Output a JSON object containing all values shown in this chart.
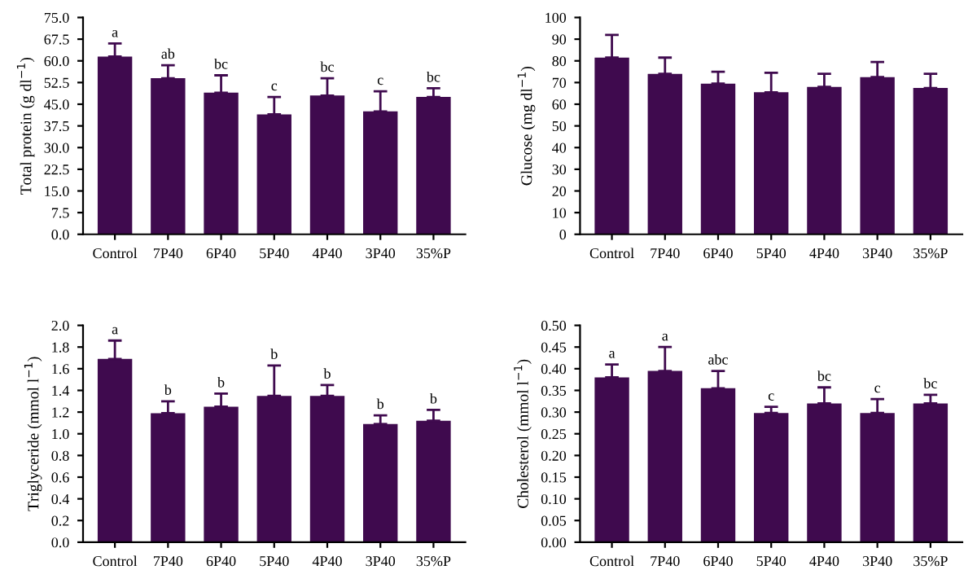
{
  "chart_data": [
    {
      "type": "bar",
      "ylabel": "Total protein (g dl$^{−1}$)",
      "categories": [
        "Control",
        "7P40",
        "6P40",
        "5P40",
        "4P40",
        "3P40",
        "35%P"
      ],
      "values": [
        61.5,
        54,
        49,
        41.5,
        48,
        42.5,
        47.5
      ],
      "color": "#3f0a4e",
      "errors": [
        [
          61.5,
          66
        ],
        [
          54,
          58.5
        ],
        [
          49,
          55
        ],
        [
          41.5,
          47.5
        ],
        [
          48,
          54
        ],
        [
          42.5,
          49.5
        ],
        [
          47.5,
          50.5
        ]
      ],
      "ylim": [
        0,
        75
      ],
      "yticks": [
        {
          "value": 0,
          "label": "0.0"
        },
        7.5,
        {
          "value": 15,
          "label": "15.0"
        },
        22.5,
        {
          "value": 30,
          "label": "30.0"
        },
        37.5,
        {
          "value": 45,
          "label": "45.0"
        },
        52.5,
        {
          "value": 60,
          "label": "60.0"
        },
        67.5,
        {
          "value": 75,
          "label": "75.0"
        }
      ],
      "annotations": [
        {
          "text": "a",
          "x": "Control",
          "y": 66
        },
        {
          "text": "ab",
          "x": "7P40",
          "y": 58.5
        },
        {
          "text": "bc",
          "x": "6P40",
          "y": 55
        },
        {
          "text": "c",
          "x": "5P40",
          "y": 47.5
        },
        {
          "text": "bc",
          "x": "4P40",
          "y": 54
        },
        {
          "text": "c",
          "x": "3P40",
          "y": 49.5
        },
        {
          "text": "bc",
          "x": "35%P",
          "y": 50.5
        }
      ]
    },
    {
      "type": "bar",
      "ylabel": "Glucose (mg dl$^{−1}$)",
      "categories": [
        "Control",
        "7P40",
        "6P40",
        "5P40",
        "4P40",
        "3P40",
        "35%P"
      ],
      "values": [
        81.5,
        74,
        69.5,
        65.5,
        68,
        72.5,
        67.5
      ],
      "color": "#3f0a4e",
      "errors": [
        [
          81.5,
          92
        ],
        [
          74,
          81.5
        ],
        [
          69.5,
          75
        ],
        [
          65.5,
          74.5
        ],
        [
          68,
          74
        ],
        [
          72.5,
          79.5
        ],
        [
          67.5,
          74
        ]
      ],
      "ylim": [
        0,
        100
      ],
      "yticks": [
        0,
        10,
        20,
        30,
        40,
        50,
        60,
        70,
        80,
        90,
        100
      ]
    },
    {
      "type": "bar",
      "ylabel": "Triglyceride (mmol l$^{−1}$)",
      "categories": [
        "Control",
        "7P40",
        "6P40",
        "5P40",
        "4P40",
        "3P40",
        "35%P"
      ],
      "values": [
        1.69,
        1.19,
        1.25,
        1.35,
        1.35,
        1.09,
        1.12
      ],
      "color": "#3f0a4e",
      "errors": [
        [
          1.69,
          1.86
        ],
        [
          1.19,
          1.3
        ],
        [
          1.25,
          1.37
        ],
        [
          1.35,
          1.63
        ],
        [
          1.35,
          1.45
        ],
        [
          1.09,
          1.17
        ],
        [
          1.12,
          1.22
        ]
      ],
      "ylim": [
        0,
        2.0
      ],
      "yticks": [
        {
          "value": 0,
          "label": "0.0"
        },
        0.2,
        0.4,
        0.6,
        0.8,
        {
          "value": 1,
          "label": "1.0"
        },
        1.2,
        1.4,
        1.6,
        1.8,
        {
          "value": 2,
          "label": "2.0"
        }
      ],
      "annotations": [
        {
          "text": "a",
          "x": "Control",
          "y": 1.86
        },
        {
          "text": "b",
          "x": "7P40",
          "y": 1.3
        },
        {
          "text": "b",
          "x": "6P40",
          "y": 1.37
        },
        {
          "text": "b",
          "x": "5P40",
          "y": 1.63
        },
        {
          "text": "b",
          "x": "4P40",
          "y": 1.45
        },
        {
          "text": "b",
          "x": "3P40",
          "y": 1.17
        },
        {
          "text": "b",
          "x": "35%P",
          "y": 1.22
        }
      ]
    },
    {
      "type": "bar",
      "ylabel": "Cholesterol (mmol l$^{−1}$)",
      "categories": [
        "Control",
        "7P40",
        "6P40",
        "5P40",
        "4P40",
        "3P40",
        "35%P"
      ],
      "values": [
        0.38,
        0.395,
        0.355,
        0.298,
        0.32,
        0.298,
        0.32
      ],
      "color": "#3f0a4e",
      "errors": [
        [
          0.38,
          0.41
        ],
        [
          0.395,
          0.45
        ],
        [
          0.355,
          0.395
        ],
        [
          0.298,
          0.312
        ],
        [
          0.32,
          0.357
        ],
        [
          0.298,
          0.33
        ],
        [
          0.32,
          0.34
        ]
      ],
      "ylim": [
        0,
        0.5
      ],
      "yticks": [
        {
          "value": 0,
          "label": "0.00"
        },
        0.05,
        {
          "value": 0.1,
          "label": "0.10"
        },
        0.15,
        {
          "value": 0.2,
          "label": "0.20"
        },
        0.25,
        {
          "value": 0.3,
          "label": "0.30"
        },
        0.35,
        {
          "value": 0.4,
          "label": "0.40"
        },
        0.45,
        {
          "value": 0.5,
          "label": "0.50"
        }
      ],
      "annotations": [
        {
          "text": "a",
          "x": "Control",
          "y": 0.41
        },
        {
          "text": "a",
          "x": "7P40",
          "y": 0.45
        },
        {
          "text": "abc",
          "x": "6P40",
          "y": 0.395
        },
        {
          "text": "c",
          "x": "5P40",
          "y": 0.312
        },
        {
          "text": "bc",
          "x": "4P40",
          "y": 0.357
        },
        {
          "text": "c",
          "x": "3P40",
          "y": 0.33
        },
        {
          "text": "bc",
          "x": "35%P",
          "y": 0.34
        }
      ]
    }
  ]
}
